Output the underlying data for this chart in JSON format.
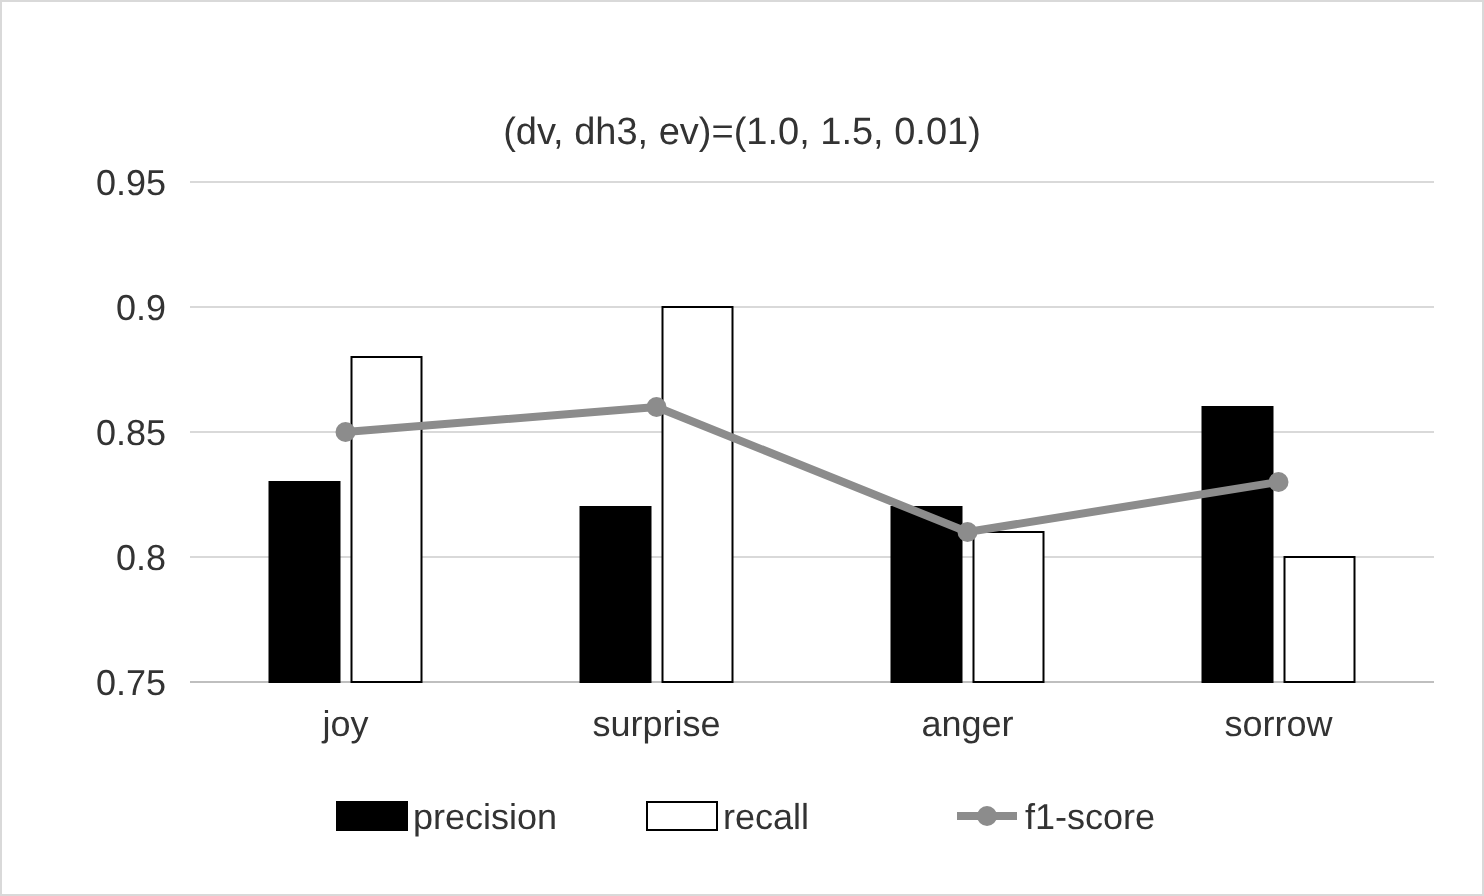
{
  "chart_data": {
    "type": "bar",
    "title": "(dv, dh3, ev)=(1.0, 1.5, 0.01)",
    "categories": [
      "joy",
      "surprise",
      "anger",
      "sorrow"
    ],
    "series": [
      {
        "name": "precision",
        "color": "#000000",
        "values": [
          0.83,
          0.82,
          0.82,
          0.86
        ]
      },
      {
        "name": "recall",
        "color": "#ffffff",
        "values": [
          0.88,
          0.9,
          0.81,
          0.8
        ]
      },
      {
        "name": "f1-score",
        "type": "line",
        "color": "#8c8c8c",
        "values": [
          0.85,
          0.86,
          0.81,
          0.83
        ]
      }
    ],
    "ylim": [
      0.75,
      0.95
    ],
    "yticks": [
      {
        "value": 0.75,
        "label": "0.75"
      },
      {
        "value": 0.8,
        "label": "0.8"
      },
      {
        "value": 0.85,
        "label": "0.85"
      },
      {
        "value": 0.9,
        "label": "0.9"
      },
      {
        "value": 0.95,
        "label": "0.95"
      }
    ],
    "grid": "y",
    "legend": "bottom",
    "marker": "circle"
  }
}
